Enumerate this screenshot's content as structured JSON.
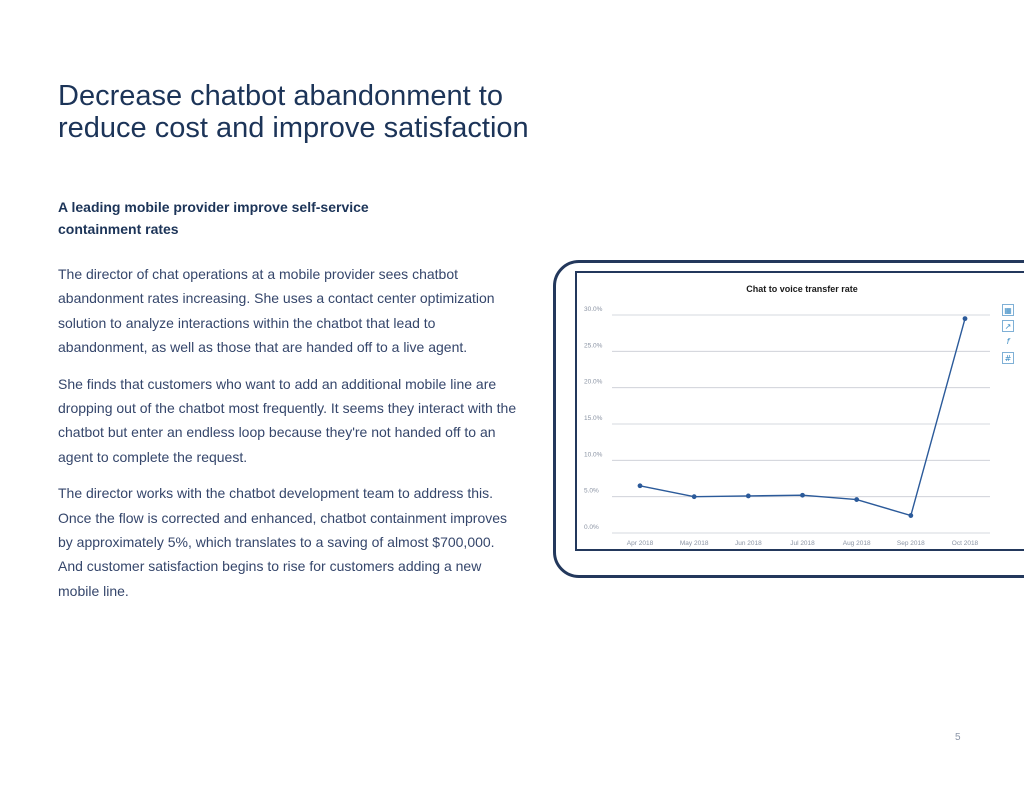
{
  "heading": {
    "line1": "Decrease chatbot abandonment to",
    "line2": "reduce cost and improve satisfaction"
  },
  "subheading": {
    "line1": "A leading mobile provider improve self-service",
    "line2": "containment rates"
  },
  "paragraphs": [
    "The director of chat operations at a mobile provider sees chatbot abandonment rates increasing. She uses a contact center optimization solution to analyze interactions within the chatbot that lead to abandonment, as well as those that are handed off to a live agent.",
    "She finds that customers who want to add an additional mobile line are dropping out of the chatbot most frequently. It seems they interact with the chatbot but enter an endless loop because they're not handed off to an agent to complete the request.",
    "The director works with the chatbot development team to address this. Once the flow is corrected and enhanced, chatbot containment improves by approximately 5%, which translates to a saving of almost $700,000. And customer satisfaction begins to rise for customers adding a new mobile line."
  ],
  "page_number": "5",
  "colors": {
    "navy": "#1c3458",
    "line": "#2b5a9a",
    "grid": "#c8ccd4"
  },
  "tool_icons": [
    "table-icon",
    "chart-icon",
    "formula-icon",
    "grid-icon"
  ],
  "chart_data": {
    "type": "line",
    "title": "Chat to voice transfer rate",
    "categories": [
      "Apr 2018",
      "May 2018",
      "Jun 2018",
      "Jul 2018",
      "Aug 2018",
      "Sep 2018",
      "Oct 2018"
    ],
    "values": [
      6.5,
      5.0,
      5.1,
      5.2,
      4.6,
      2.4,
      29.5
    ],
    "yticks": [
      "0.0%",
      "5.0%",
      "10.0%",
      "15.0%",
      "20.0%",
      "25.0%",
      "30.0%"
    ],
    "ylim": [
      0,
      30
    ],
    "xlabel": "",
    "ylabel": "",
    "grid": true
  }
}
